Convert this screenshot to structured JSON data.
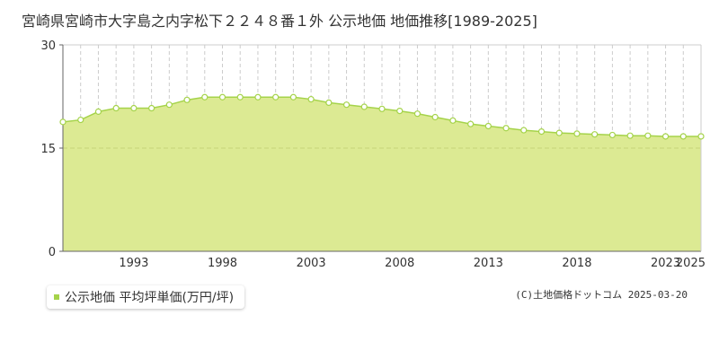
{
  "title": "宮崎県宮崎市大字島之内字松下２２４８番１外 公示地価 地価推移[1989-2025]",
  "legend_label": "公示地価 平均坪単価(万円/坪)",
  "copyright": "(C)土地価格ドットコム 2025-03-20",
  "colors": {
    "fill": "#dcea93",
    "line": "#a5d34a",
    "grid": "#cccccc",
    "axis": "#666666"
  },
  "chart_data": {
    "type": "area",
    "title": "宮崎県宮崎市大字島之内字松下２２４８番１外 公示地価 地価推移[1989-2025]",
    "xlabel": "",
    "ylabel": "",
    "xlim": [
      1989,
      2025
    ],
    "ylim": [
      0,
      30
    ],
    "y_ticks": [
      0,
      15,
      30
    ],
    "x_tick_labels": [
      "1993",
      "1998",
      "2003",
      "2008",
      "2013",
      "2018",
      "2023",
      "2025"
    ],
    "x_tick_values": [
      1993,
      1998,
      2003,
      2008,
      2013,
      2018,
      2023,
      2025
    ],
    "grid": true,
    "legend_position": "bottom-left",
    "series": [
      {
        "name": "公示地価 平均坪単価(万円/坪)",
        "x": [
          1989,
          1990,
          1991,
          1992,
          1993,
          1994,
          1995,
          1996,
          1997,
          1998,
          1999,
          2000,
          2001,
          2002,
          2003,
          2004,
          2005,
          2006,
          2007,
          2008,
          2009,
          2010,
          2011,
          2012,
          2013,
          2014,
          2015,
          2016,
          2017,
          2018,
          2019,
          2020,
          2021,
          2022,
          2023,
          2024,
          2025
        ],
        "values": [
          18.8,
          19.1,
          20.3,
          20.8,
          20.8,
          20.8,
          21.3,
          22.0,
          22.4,
          22.4,
          22.4,
          22.4,
          22.4,
          22.4,
          22.1,
          21.6,
          21.3,
          21.0,
          20.7,
          20.4,
          20.0,
          19.5,
          19.0,
          18.5,
          18.2,
          17.9,
          17.6,
          17.4,
          17.2,
          17.1,
          17.0,
          16.9,
          16.8,
          16.8,
          16.7,
          16.7,
          16.7
        ]
      }
    ]
  }
}
